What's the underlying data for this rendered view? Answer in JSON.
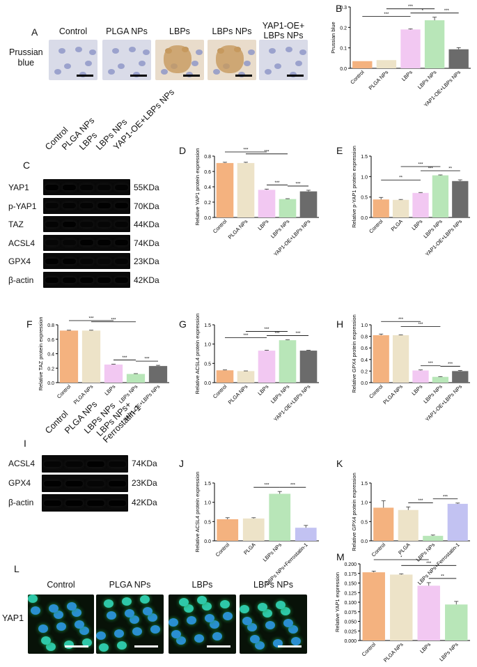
{
  "panels": {
    "A": "A",
    "B": "B",
    "C": "C",
    "D": "D",
    "E": "E",
    "F": "F",
    "G": "G",
    "H": "H",
    "I": "I",
    "J": "J",
    "K": "K",
    "L": "L",
    "M": "M"
  },
  "panelA": {
    "groups": [
      "Control",
      "PLGA NPs",
      "LBPs",
      "LBPs NPs",
      "YAP1-OE+\nLBPs NPs"
    ],
    "row_label": "Prussian\nblue"
  },
  "panelC": {
    "lanes": [
      "Control",
      "PLGA NPs",
      "LBPs",
      "LBPs NPs",
      "YAP1-OE+LBPs NPs"
    ],
    "proteins": [
      "YAP1",
      "p-YAP1",
      "TAZ",
      "ACSL4",
      "GPX4",
      "β-actin"
    ],
    "sizes": [
      "55KDa",
      "70KDa",
      "44KDa",
      "74KDa",
      "23KDa",
      "42KDa"
    ]
  },
  "panelI": {
    "lanes": [
      "Control",
      "PLGA NPs",
      "LBPs NPs",
      "LBPs NPs+\nFerrostatin-1"
    ],
    "proteins": [
      "ACSL4",
      "GPX4",
      "β-actin"
    ],
    "sizes": [
      "74KDa",
      "23KDa",
      "42KDa"
    ]
  },
  "panelL": {
    "groups": [
      "Control",
      "PLGA NPs",
      "LBPs",
      "LBPs NPs"
    ],
    "row_label": "YAP1"
  },
  "colors": {
    "control": "#f4b27f",
    "plga": "#ede3c8",
    "lbps": "#f2c8f2",
    "lbpsnps": "#b8e6b8",
    "yap": "#6b6b6b",
    "ferro": "#c2c2f2"
  },
  "chart_data": [
    {
      "id": "B",
      "type": "bar",
      "ylabel": "Prussian blue",
      "categories": [
        "Control",
        "PLGA NPs",
        "LBPs",
        "LBPs NPs",
        "YAP1-OE+LBPs NPs"
      ],
      "values": [
        0.035,
        0.04,
        0.19,
        0.235,
        0.093
      ],
      "errors": [
        0,
        0,
        0.003,
        0.015,
        0.008
      ],
      "ylim": [
        0,
        0.3
      ],
      "yticks": [
        "0.0",
        "0.1",
        "0.2",
        "0.3"
      ],
      "sig": [
        {
          "from": 0,
          "to": 2,
          "label": "***"
        },
        {
          "from": 1,
          "to": 3,
          "label": "***"
        },
        {
          "from": 2,
          "to": 3,
          "label": "*"
        },
        {
          "from": 3,
          "to": 4,
          "label": "***"
        }
      ]
    },
    {
      "id": "D",
      "type": "bar",
      "ylabel": "Relative YAP1 protein expression",
      "categories": [
        "Control",
        "PLGA NPs",
        "LBPs",
        "LBPs NPs",
        "YAP1-OE+LBPs NPs"
      ],
      "values": [
        0.71,
        0.71,
        0.36,
        0.24,
        0.34
      ],
      "errors": [
        0.01,
        0.01,
        0.01,
        0.005,
        0.015
      ],
      "ylim": [
        0,
        0.8
      ],
      "yticks": [
        "0.0",
        "0.2",
        "0.4",
        "0.6",
        "0.8"
      ],
      "sig": [
        {
          "from": 0,
          "to": 2,
          "label": "***"
        },
        {
          "from": 1,
          "to": 3,
          "label": "***"
        },
        {
          "from": 2,
          "to": 3,
          "label": "***"
        },
        {
          "from": 3,
          "to": 4,
          "label": "***"
        }
      ]
    },
    {
      "id": "E",
      "type": "bar",
      "ylabel": "Relative p-YAP1 protein expression",
      "categories": [
        "Control",
        "PLGA",
        "LBPs",
        "LBPs NPs",
        "YAP1-OE+LBPs NPs"
      ],
      "values": [
        0.44,
        0.43,
        0.6,
        1.03,
        0.89
      ],
      "errors": [
        0.05,
        0.01,
        0.01,
        0.01,
        0.03
      ],
      "ylim": [
        0,
        1.5
      ],
      "yticks": [
        "0.0",
        "0.5",
        "1.0",
        "1.5"
      ],
      "sig": [
        {
          "from": 0,
          "to": 2,
          "label": "**"
        },
        {
          "from": 1,
          "to": 3,
          "label": "***"
        },
        {
          "from": 2,
          "to": 3,
          "label": "***"
        },
        {
          "from": 3,
          "to": 4,
          "label": "**"
        }
      ]
    },
    {
      "id": "F",
      "type": "bar",
      "ylabel": "Relative TAZ protein expression",
      "categories": [
        "Control",
        "PLGA NPs",
        "LBPs",
        "LBPs NPs",
        "YAP1-OE+LBPs NPs"
      ],
      "values": [
        0.72,
        0.72,
        0.25,
        0.12,
        0.23
      ],
      "errors": [
        0.005,
        0.005,
        0.005,
        0.005,
        0.01
      ],
      "ylim": [
        0,
        0.8
      ],
      "yticks": [
        "0.0",
        "0.2",
        "0.4",
        "0.6",
        "0.8"
      ],
      "sig": [
        {
          "from": 0,
          "to": 2,
          "label": "***"
        },
        {
          "from": 1,
          "to": 3,
          "label": "***"
        },
        {
          "from": 2,
          "to": 3,
          "label": "***"
        },
        {
          "from": 3,
          "to": 4,
          "label": "***"
        }
      ]
    },
    {
      "id": "G",
      "type": "bar",
      "ylabel": "Relative ACSL4 protein expression",
      "categories": [
        "Control",
        "PLGA NPs",
        "LBPs",
        "LBPs NPs",
        "YAP1-OE+LBPs NPs"
      ],
      "values": [
        0.32,
        0.3,
        0.83,
        1.1,
        0.83
      ],
      "errors": [
        0.01,
        0.005,
        0.01,
        0.01,
        0.01
      ],
      "ylim": [
        0,
        1.5
      ],
      "yticks": [
        "0.0",
        "0.5",
        "1.0",
        "1.5"
      ],
      "sig": [
        {
          "from": 0,
          "to": 2,
          "label": "***"
        },
        {
          "from": 1,
          "to": 3,
          "label": "***"
        },
        {
          "from": 2,
          "to": 3,
          "label": "***"
        },
        {
          "from": 3,
          "to": 4,
          "label": "***"
        }
      ]
    },
    {
      "id": "H",
      "type": "bar",
      "ylabel": "Relative GPX4 protein expression",
      "categories": [
        "Control",
        "PLGA NPs",
        "LBPs",
        "LBPs NPs",
        "YAP1-OE+LBPs NPs"
      ],
      "values": [
        0.82,
        0.82,
        0.21,
        0.1,
        0.2
      ],
      "errors": [
        0.02,
        0.005,
        0.01,
        0.005,
        0.01
      ],
      "ylim": [
        0,
        1.0
      ],
      "yticks": [
        "0.0",
        "0.2",
        "0.4",
        "0.6",
        "0.8",
        "1.0"
      ],
      "sig": [
        {
          "from": 0,
          "to": 2,
          "label": "***"
        },
        {
          "from": 1,
          "to": 3,
          "label": "***"
        },
        {
          "from": 2,
          "to": 3,
          "label": "***"
        },
        {
          "from": 3,
          "to": 4,
          "label": "***"
        }
      ]
    },
    {
      "id": "J",
      "type": "bar",
      "ylabel": "Relative ACSL4 protein expression",
      "categories": [
        "Control",
        "PLGA",
        "LBPs NPs",
        "LBPs NPs+Ferrostatin-1"
      ],
      "values": [
        0.56,
        0.58,
        1.22,
        0.34
      ],
      "errors": [
        0.04,
        0.02,
        0.06,
        0.06
      ],
      "ylim": [
        0,
        1.5
      ],
      "yticks": [
        "0.0",
        "0.5",
        "1.0",
        "1.5"
      ],
      "sig": [
        {
          "from": 1,
          "to": 2,
          "label": "***"
        },
        {
          "from": 2,
          "to": 3,
          "label": "***"
        }
      ]
    },
    {
      "id": "K",
      "type": "bar",
      "ylabel": "Relative GPX4 protein expression",
      "categories": [
        "Control",
        "PLGA",
        "LBPs NPs",
        "LBPs NPs+Ferrostatin-1"
      ],
      "values": [
        0.86,
        0.8,
        0.13,
        0.96
      ],
      "errors": [
        0.18,
        0.08,
        0.02,
        0.02
      ],
      "ylim": [
        0,
        1.5
      ],
      "yticks": [
        "0.0",
        "0.5",
        "1.0",
        "1.5"
      ],
      "sig": [
        {
          "from": 1,
          "to": 2,
          "label": "***"
        },
        {
          "from": 2,
          "to": 3,
          "label": "***"
        }
      ]
    },
    {
      "id": "M",
      "type": "bar",
      "ylabel": "Relative YAP1 expression",
      "categories": [
        "Control",
        "PLGA NPs",
        "LBPs",
        "LBPs NPs"
      ],
      "values": [
        0.178,
        0.172,
        0.143,
        0.094
      ],
      "errors": [
        0.003,
        0.002,
        0.008,
        0.008
      ],
      "ylim": [
        0,
        0.2
      ],
      "yticks": [
        "0.000",
        "0.025",
        "0.050",
        "0.075",
        "0.100",
        "0.125",
        "0.150",
        "0.175",
        "0.200"
      ],
      "sig": [
        {
          "from": 0,
          "to": 2,
          "label": "*"
        },
        {
          "from": 1,
          "to": 3,
          "label": "***"
        },
        {
          "from": 2,
          "to": 3,
          "label": "**"
        }
      ]
    }
  ]
}
